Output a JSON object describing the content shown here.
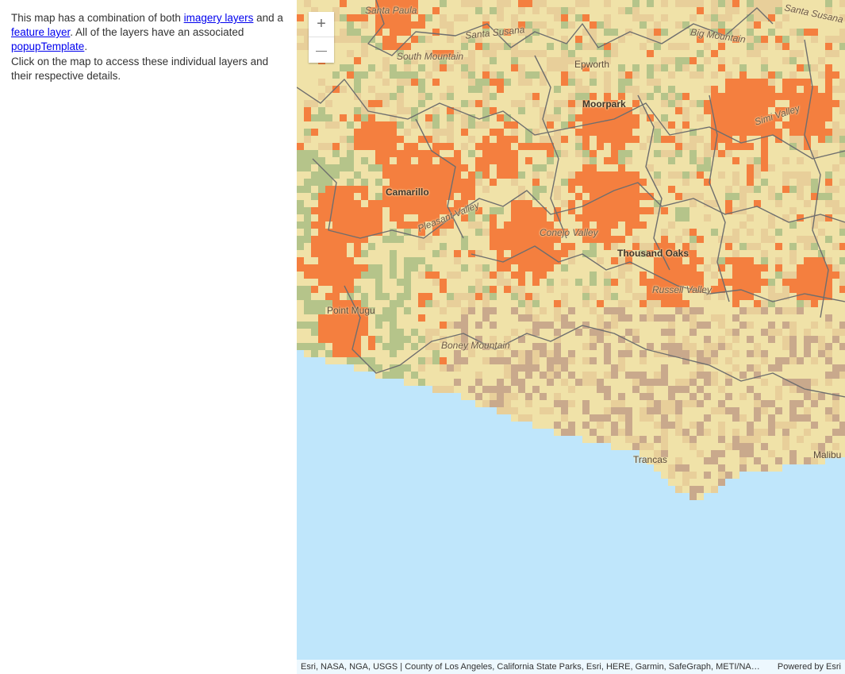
{
  "sidebar": {
    "line1_prefix": "This map has a combination of both ",
    "imagery_link": "imagery layers",
    "line2_prefix": " and a ",
    "feature_link": "feature layer",
    "line2_suffix": ". All of the layers have an associated ",
    "popup_link": "popupTemplate",
    "period": ".",
    "line3": "Click on the map to access these individual layers and their respective details."
  },
  "map": {
    "zoom_in_label": "+",
    "zoom_out_label": "—",
    "labels": {
      "santa_paula": "Santa Paula",
      "santa_susana": "Santa Susana",
      "big_mountain": "Big Mountain",
      "santa_susana_east": "Santa Susana",
      "south_mountain": "South Mountain",
      "epworth": "Epworth",
      "moorpark": "Moorpark",
      "simi_valley": "Simi Valley",
      "camarillo": "Camarillo",
      "pleasant_valley": "Pleasant Valley",
      "conejo_valley": "Conejo Valley",
      "thousand_oaks": "Thousand Oaks",
      "russell_valley": "Russell Valley",
      "point_mugu": "Point Mugu",
      "boney_mountain": "Boney Mountain",
      "trancas": "Trancas",
      "malibu": "Malibu"
    },
    "colors": {
      "ocean": "#bfe6fb",
      "urban": "#f47f3f",
      "grassland": "#f0e2a8",
      "shrub": "#e8cf9a",
      "forest": "#b5c48a",
      "barren": "#c9a98c",
      "boundary": "#6e6e6e"
    }
  },
  "attribution": {
    "sources": "Esri, NASA, NGA, USGS | County of Los Angeles, California State Parks, Esri, HERE, Garmin, SafeGraph, METI/NASA, USGS, Bureau of Land Management, EPA, NPS, USDA",
    "powered_by": "Powered by Esri"
  }
}
